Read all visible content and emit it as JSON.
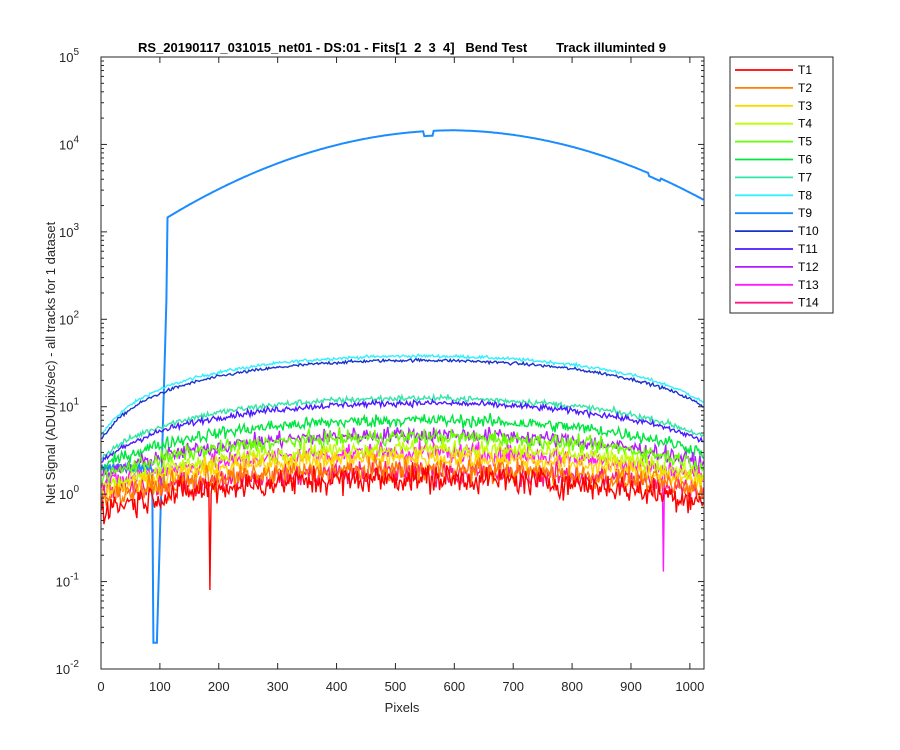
{
  "chart_data": {
    "type": "line",
    "title": "RS_20190117_031015_net01 - DS:01 - Fits[1  2  3  4]   Bend Test        Track illuminted 9",
    "xlabel": "Pixels",
    "ylabel": "Net Signal (ADU/pix/sec) - all tracks for 1 dataset",
    "xlim": [
      0,
      1024
    ],
    "ylim": [
      0.01,
      100000
    ],
    "yscale": "log",
    "x_ticks": [
      "0",
      "100",
      "200",
      "300",
      "400",
      "500",
      "600",
      "700",
      "800",
      "900",
      "1000"
    ],
    "y_ticks": [
      {
        "base": "10",
        "exp": "-2"
      },
      {
        "base": "10",
        "exp": "-1"
      },
      {
        "base": "10",
        "exp": "0"
      },
      {
        "base": "10",
        "exp": "1"
      },
      {
        "base": "10",
        "exp": "2"
      },
      {
        "base": "10",
        "exp": "3"
      },
      {
        "base": "10",
        "exp": "4"
      },
      {
        "base": "10",
        "exp": "5"
      }
    ],
    "legend_position": "outside-right",
    "series": [
      {
        "name": "T1",
        "color": "#ff0000",
        "edge": 0.6,
        "peak": 1.5,
        "noise": 0.35
      },
      {
        "name": "T2",
        "color": "#ff7f00",
        "edge": 0.8,
        "peak": 1.9,
        "noise": 0.3
      },
      {
        "name": "T3",
        "color": "#ffd700",
        "edge": 0.9,
        "peak": 2.6,
        "noise": 0.25
      },
      {
        "name": "T4",
        "color": "#bfff00",
        "edge": 1.0,
        "peak": 3.3,
        "noise": 0.22
      },
      {
        "name": "T5",
        "color": "#66ff00",
        "edge": 1.3,
        "peak": 4.5,
        "noise": 0.2
      },
      {
        "name": "T6",
        "color": "#00e640",
        "edge": 1.6,
        "peak": 7.0,
        "noise": 0.16
      },
      {
        "name": "T7",
        "color": "#33e6a6",
        "edge": 1.8,
        "peak": 12.5,
        "noise": 0.08
      },
      {
        "name": "T8",
        "color": "#33f0ff",
        "edge": 2.0,
        "peak": 38,
        "noise": 0.04
      },
      {
        "name": "T9",
        "color": "#1a8cff",
        "edge": 2.0,
        "peak": 14500,
        "noise": 0.01
      },
      {
        "name": "T10",
        "color": "#1a33cc",
        "edge": 1.8,
        "peak": 34,
        "noise": 0.04
      },
      {
        "name": "T11",
        "color": "#4d1aff",
        "edge": 1.6,
        "peak": 11,
        "noise": 0.08
      },
      {
        "name": "T12",
        "color": "#b31aff",
        "edge": 1.3,
        "peak": 4.8,
        "noise": 0.2
      },
      {
        "name": "T13",
        "color": "#ff1aff",
        "edge": 1.1,
        "peak": 3.0,
        "noise": 0.25
      },
      {
        "name": "T14",
        "color": "#ff1a80",
        "edge": 0.9,
        "peak": 1.8,
        "noise": 0.3
      }
    ]
  }
}
